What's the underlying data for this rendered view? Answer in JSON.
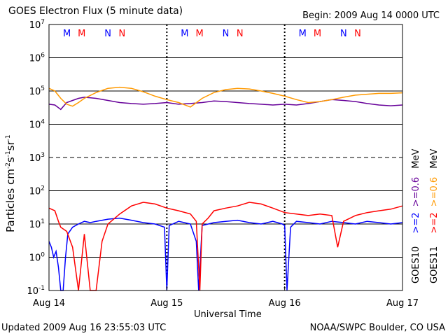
{
  "header": {
    "title": "GOES Electron Flux (5 minute data)",
    "begin": "Begin: 2009 Aug 14 0000 UTC"
  },
  "footer": {
    "updated": "Updated 2009 Aug 16 23:55:03 UTC",
    "credit": "NOAA/SWPC Boulder, CO USA"
  },
  "colors": {
    "goes10_2mev": "#0000ff",
    "goes11_2mev": "#ff0000",
    "goes10_06mev": "#660099",
    "goes11_06mev": "#ff9900",
    "grid": "#000000"
  },
  "chart_data": {
    "type": "line",
    "title": "GOES Electron Flux (5 minute data)",
    "xlabel": "Universal Time",
    "ylabel": "Particles cm⁻²s⁻¹sr⁻¹",
    "ylabel_parts": {
      "main": "Particles cm",
      "sup1": "-2",
      "s": "s",
      "sup2": "-1",
      "sr": "sr",
      "sup3": "-1"
    },
    "y_scale": "log",
    "ylim": [
      0.1,
      10000000
    ],
    "y_ticks": [
      {
        "base": "10",
        "exp": "-1"
      },
      {
        "base": "10",
        "exp": "0"
      },
      {
        "base": "10",
        "exp": "1"
      },
      {
        "base": "10",
        "exp": "2"
      },
      {
        "base": "10",
        "exp": "3"
      },
      {
        "base": "10",
        "exp": "4"
      },
      {
        "base": "10",
        "exp": "5"
      },
      {
        "base": "10",
        "exp": "6"
      },
      {
        "base": "10",
        "exp": "7"
      }
    ],
    "x_range_days": [
      0,
      3
    ],
    "x_ticks": [
      "Aug 14",
      "Aug 15",
      "Aug 16",
      "Aug 17"
    ],
    "grid": true,
    "mn_markers": [
      {
        "day": 0,
        "labels": [
          {
            "t": "M",
            "c": "blue"
          },
          {
            "t": "M",
            "c": "red"
          },
          {
            "t": "N",
            "c": "blue"
          },
          {
            "t": "N",
            "c": "red"
          }
        ]
      },
      {
        "day": 1,
        "labels": [
          {
            "t": "M",
            "c": "blue"
          },
          {
            "t": "M",
            "c": "red"
          },
          {
            "t": "N",
            "c": "blue"
          },
          {
            "t": "N",
            "c": "red"
          }
        ]
      },
      {
        "day": 2,
        "labels": [
          {
            "t": "M",
            "c": "blue"
          },
          {
            "t": "M",
            "c": "red"
          },
          {
            "t": "N",
            "c": "blue"
          },
          {
            "t": "N",
            "c": "red"
          }
        ]
      }
    ],
    "legend": {
      "goes10_label": "GOES10",
      "goes11_label": "GOES11",
      "g10_2": ">=2",
      "g10_06": ">=0.6",
      "g11_2": ">=2",
      "g11_06": ">=0.6",
      "unit1": "MeV",
      "unit2": "MeV"
    },
    "series": [
      {
        "name": "GOES10 >=0.6 MeV",
        "color": "#660099",
        "x": [
          0,
          0.05,
          0.1,
          0.15,
          0.2,
          0.25,
          0.3,
          0.4,
          0.5,
          0.6,
          0.7,
          0.8,
          0.9,
          1.0,
          1.1,
          1.2,
          1.3,
          1.4,
          1.5,
          1.6,
          1.7,
          1.8,
          1.9,
          2.0,
          2.1,
          2.2,
          2.3,
          2.4,
          2.5,
          2.6,
          2.7,
          2.8,
          2.9,
          3.0
        ],
        "y": [
          40000,
          38000,
          28000,
          45000,
          52000,
          60000,
          65000,
          60000,
          52000,
          45000,
          42000,
          40000,
          42000,
          45000,
          40000,
          42000,
          45000,
          50000,
          48000,
          45000,
          42000,
          40000,
          38000,
          40000,
          38000,
          42000,
          48000,
          55000,
          52000,
          48000,
          42000,
          38000,
          36000,
          38000
        ]
      },
      {
        "name": "GOES11 >=0.6 MeV",
        "color": "#ff9900",
        "x": [
          0,
          0.05,
          0.1,
          0.15,
          0.2,
          0.25,
          0.3,
          0.4,
          0.5,
          0.6,
          0.7,
          0.8,
          0.9,
          1.0,
          1.1,
          1.2,
          1.3,
          1.4,
          1.5,
          1.6,
          1.7,
          1.8,
          1.9,
          2.0,
          2.1,
          2.2,
          2.3,
          2.4,
          2.5,
          2.6,
          2.7,
          2.8,
          2.9,
          3.0
        ],
        "y": [
          120000,
          100000,
          60000,
          40000,
          35000,
          45000,
          60000,
          90000,
          120000,
          130000,
          120000,
          95000,
          70000,
          55000,
          45000,
          33000,
          60000,
          90000,
          110000,
          120000,
          115000,
          100000,
          85000,
          70000,
          55000,
          45000,
          48000,
          55000,
          65000,
          75000,
          80000,
          85000,
          85000,
          88000
        ]
      },
      {
        "name": "GOES10 >=2 MeV",
        "color": "#0000ff",
        "x": [
          0,
          0.02,
          0.04,
          0.06,
          0.08,
          0.1,
          0.12,
          0.14,
          0.16,
          0.2,
          0.25,
          0.3,
          0.35,
          0.4,
          0.5,
          0.6,
          0.7,
          0.8,
          0.9,
          0.98,
          1.0,
          1.02,
          1.1,
          1.2,
          1.25,
          1.27,
          1.3,
          1.4,
          1.5,
          1.6,
          1.7,
          1.8,
          1.9,
          1.98,
          2.0,
          2.02,
          2.05,
          2.1,
          2.2,
          2.3,
          2.4,
          2.5,
          2.6,
          2.7,
          2.8,
          2.9,
          3.0
        ],
        "y": [
          3,
          2,
          1,
          1.5,
          0.5,
          0.1,
          0.1,
          1,
          5,
          8,
          10,
          12,
          11,
          12,
          14,
          15,
          13,
          11,
          10,
          8,
          0.1,
          9,
          12,
          10,
          3,
          0.1,
          9,
          11,
          12,
          13,
          11,
          10,
          12,
          10,
          9,
          0.1,
          8,
          12,
          11,
          10,
          12,
          11,
          10,
          12,
          11,
          10,
          11
        ]
      },
      {
        "name": "GOES11 >=2 MeV",
        "color": "#ff0000",
        "x": [
          0,
          0.05,
          0.08,
          0.1,
          0.15,
          0.2,
          0.25,
          0.3,
          0.35,
          0.4,
          0.45,
          0.5,
          0.6,
          0.7,
          0.8,
          0.9,
          1.0,
          1.1,
          1.2,
          1.25,
          1.28,
          1.3,
          1.35,
          1.4,
          1.5,
          1.6,
          1.7,
          1.8,
          1.9,
          2.0,
          2.1,
          2.2,
          2.3,
          2.4,
          2.45,
          2.5,
          2.6,
          2.7,
          2.8,
          2.9,
          3.0
        ],
        "y": [
          30,
          25,
          12,
          8,
          6,
          2,
          0.1,
          5,
          0.1,
          0.1,
          3,
          10,
          20,
          35,
          45,
          40,
          30,
          25,
          20,
          12,
          0.1,
          10,
          15,
          25,
          30,
          35,
          45,
          40,
          30,
          22,
          20,
          18,
          20,
          18,
          2,
          12,
          18,
          22,
          25,
          28,
          35
        ]
      }
    ]
  }
}
